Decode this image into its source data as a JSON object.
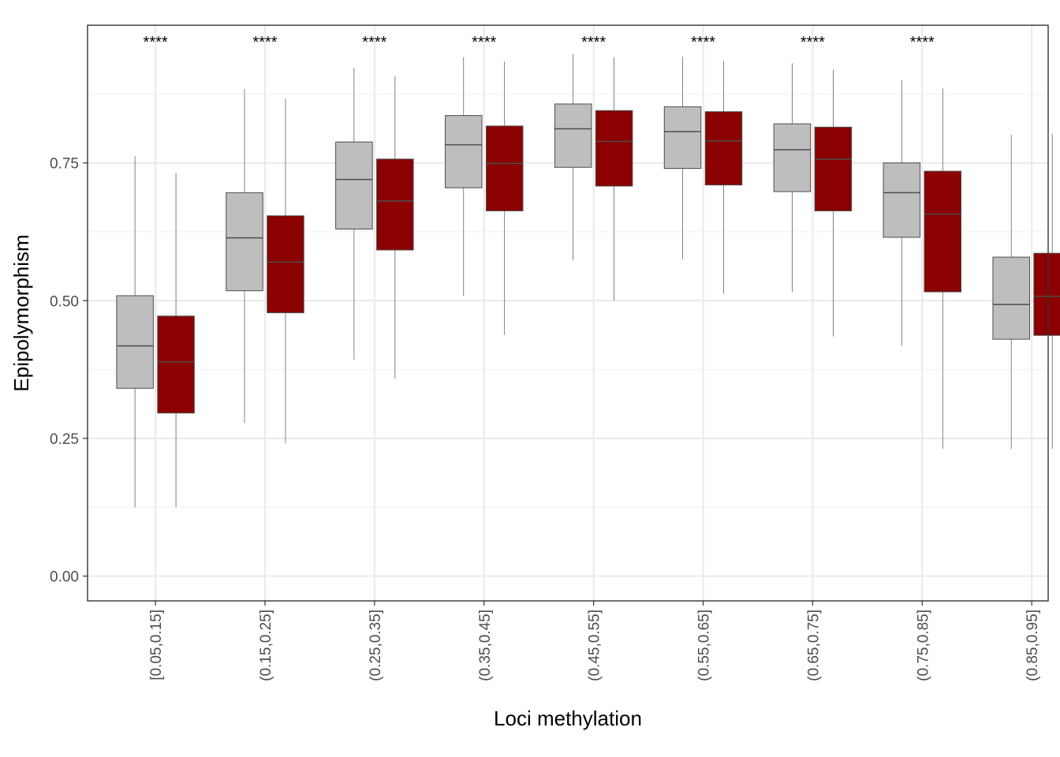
{
  "chart_data": {
    "type": "boxplot",
    "xlabel": "Loci methylation",
    "ylabel": "Epipolymorphism",
    "ylim": [
      -0.045,
      1.0
    ],
    "yticks": [
      0.0,
      0.25,
      0.5,
      0.75
    ],
    "ytick_labels": [
      "0.00",
      "0.25",
      "0.50",
      "0.75"
    ],
    "grid": true,
    "legend": "none",
    "colors": {
      "group_1_fill": "#bebebe",
      "group_2_fill": "#8b0000",
      "outline": "#4d4d4d",
      "grid_major": "#ebebeb",
      "grid_minor": "#f2f2f2",
      "panel_border": "#333333"
    },
    "categories": [
      "[0.05,0.15]",
      "(0.15,0.25]",
      "(0.25,0.35]",
      "(0.35,0.45]",
      "(0.45,0.55]",
      "(0.55,0.65]",
      "(0.65,0.75]",
      "(0.75,0.85]",
      "(0.85,0.95]"
    ],
    "significance": [
      "****",
      "****",
      "****",
      "****",
      "****",
      "****",
      "****",
      "****",
      ""
    ],
    "series": [
      {
        "fill": "#bebebe",
        "boxes": [
          {
            "min": 0.125,
            "q1": 0.341,
            "median": 0.418,
            "q3": 0.509,
            "max": 0.762
          },
          {
            "min": 0.278,
            "q1": 0.518,
            "median": 0.614,
            "q3": 0.696,
            "max": 0.884
          },
          {
            "min": 0.393,
            "q1": 0.63,
            "median": 0.72,
            "q3": 0.788,
            "max": 0.923
          },
          {
            "min": 0.509,
            "q1": 0.705,
            "median": 0.783,
            "q3": 0.836,
            "max": 0.942
          },
          {
            "min": 0.573,
            "q1": 0.742,
            "median": 0.812,
            "q3": 0.857,
            "max": 0.948
          },
          {
            "min": 0.575,
            "q1": 0.74,
            "median": 0.807,
            "q3": 0.852,
            "max": 0.943
          },
          {
            "min": 0.516,
            "q1": 0.698,
            "median": 0.774,
            "q3": 0.821,
            "max": 0.931
          },
          {
            "min": 0.418,
            "q1": 0.615,
            "median": 0.696,
            "q3": 0.75,
            "max": 0.9
          },
          {
            "min": 0.231,
            "q1": 0.43,
            "median": 0.493,
            "q3": 0.579,
            "max": 0.801
          }
        ]
      },
      {
        "fill": "#8b0000",
        "boxes": [
          {
            "min": 0.125,
            "q1": 0.296,
            "median": 0.389,
            "q3": 0.472,
            "max": 0.732
          },
          {
            "min": 0.241,
            "q1": 0.478,
            "median": 0.57,
            "q3": 0.654,
            "max": 0.867
          },
          {
            "min": 0.358,
            "q1": 0.592,
            "median": 0.681,
            "q3": 0.757,
            "max": 0.907
          },
          {
            "min": 0.438,
            "q1": 0.663,
            "median": 0.749,
            "q3": 0.817,
            "max": 0.934
          },
          {
            "min": 0.5,
            "q1": 0.708,
            "median": 0.789,
            "q3": 0.845,
            "max": 0.942
          },
          {
            "min": 0.513,
            "q1": 0.71,
            "median": 0.79,
            "q3": 0.843,
            "max": 0.935
          },
          {
            "min": 0.435,
            "q1": 0.663,
            "median": 0.757,
            "q3": 0.815,
            "max": 0.919
          },
          {
            "min": 0.231,
            "q1": 0.516,
            "median": 0.657,
            "q3": 0.735,
            "max": 0.885
          },
          {
            "min": 0.231,
            "q1": 0.437,
            "median": 0.508,
            "q3": 0.586,
            "max": 0.803
          }
        ]
      }
    ]
  }
}
